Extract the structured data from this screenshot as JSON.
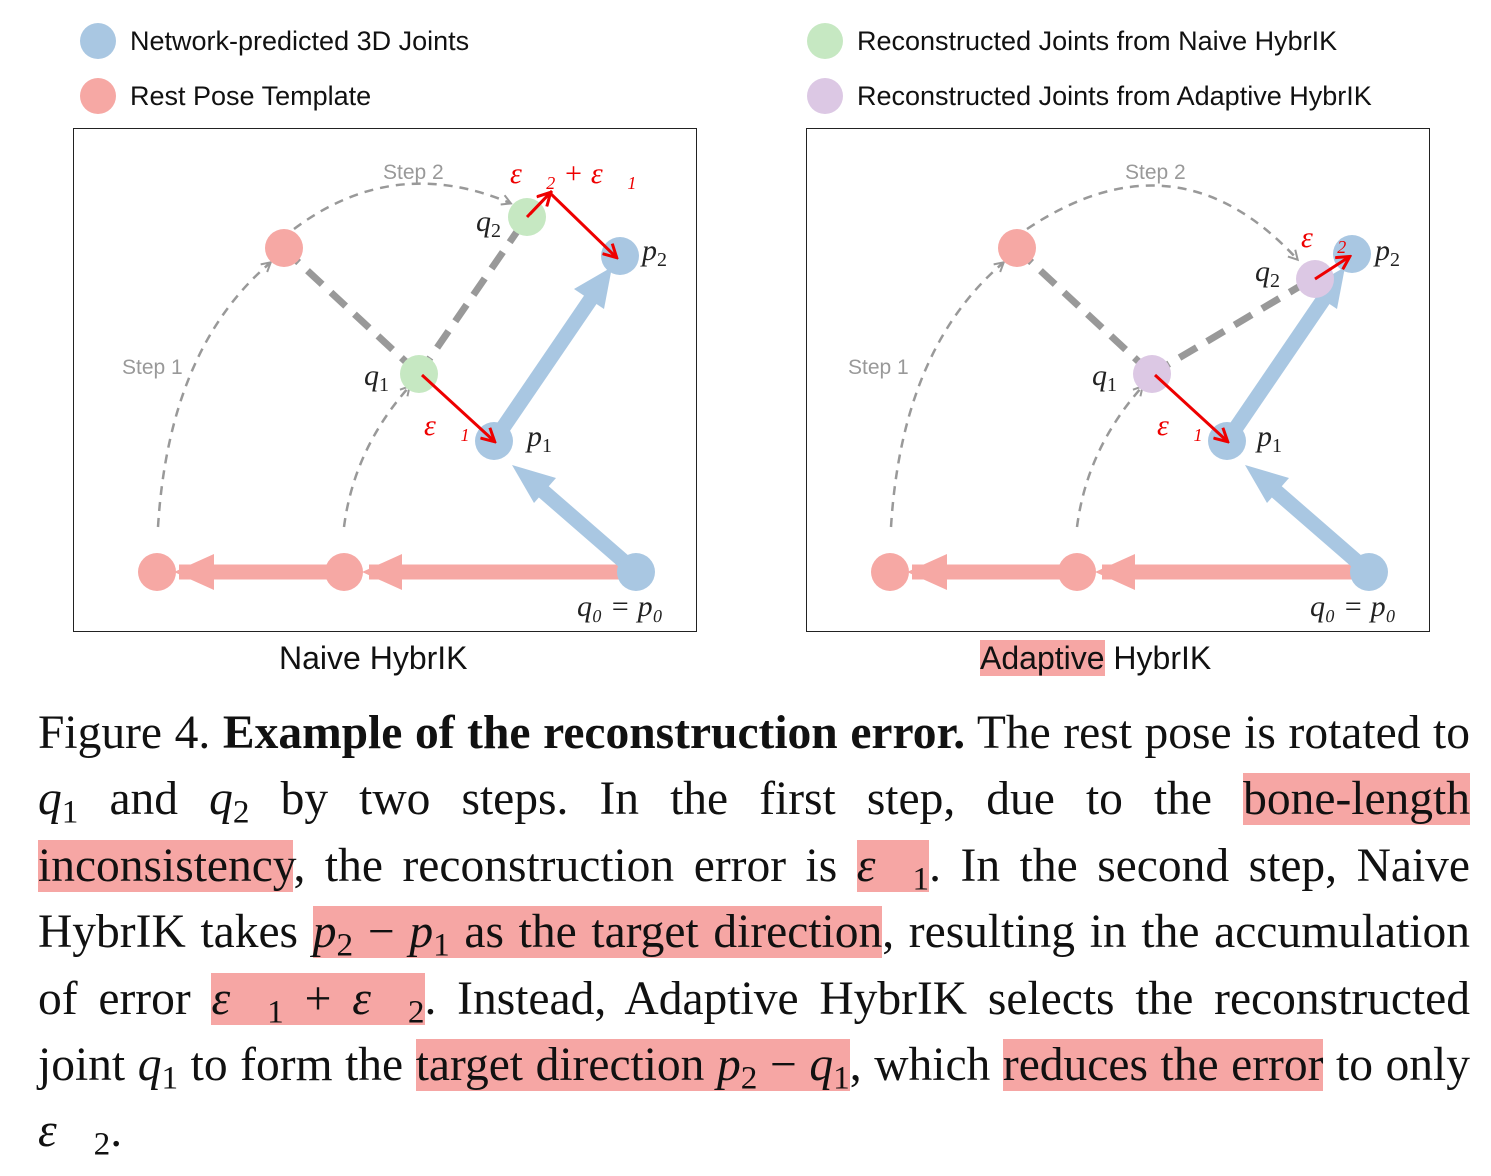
{
  "legend": [
    {
      "label": "Network-predicted 3D Joints",
      "color": "#a9c7e2"
    },
    {
      "label": "Rest Pose Template",
      "color": "#f6a8a4"
    },
    {
      "label": "Reconstructed Joints from Naive HybrIK",
      "color": "#c6e8c2"
    },
    {
      "label": "Reconstructed Joints from Adaptive HybrIK",
      "color": "#dcc8e4"
    }
  ],
  "panels": {
    "left": {
      "caption": "Naive HybrIK",
      "step1": "Step 1",
      "step2": "Step 2",
      "lbl_q1": "q",
      "sub_q1": "1",
      "lbl_q2": "q",
      "sub_q2": "2",
      "lbl_p1": "p",
      "sub_p1": "1",
      "lbl_p2": "p",
      "sub_p2": "2",
      "lbl_base": "q₀ = p₀",
      "err_small": "ε⃗₁",
      "err_top": "ε⃗₂ + ε⃗₁"
    },
    "right": {
      "caption_highlight": "Adaptive",
      "caption_rest": " HybrIK",
      "step1": "Step 1",
      "step2": "Step 2",
      "lbl_q1": "q",
      "sub_q1": "1",
      "lbl_q2": "q",
      "sub_q2": "2",
      "lbl_p1": "p",
      "sub_p1": "1",
      "lbl_p2": "p",
      "sub_p2": "2",
      "lbl_base": "q₀ = p₀",
      "err_small": "ε⃗₁",
      "err_top": "ε⃗₂"
    }
  },
  "colors": {
    "predicted": "#a9c7e2",
    "rest": "#f6a8a4",
    "naive": "#c6e8c2",
    "adaptive": "#dcc8e4",
    "error": "#ee0000",
    "highlight": "#f6a6a4"
  },
  "caption": {
    "figure_label": "Figure 4.",
    "title": "Example of the reconstruction error.",
    "t1": " The rest pose is rotated to ",
    "q": "q",
    "one": "1",
    "two": "2",
    "t2": " and ",
    "t3": " by two steps. In the first step, due to the ",
    "h1": "bone-length inconsistency",
    "t4": ", the reconstruction error is ",
    "eps1": "ε⃗",
    "t5": ". In the second step, Naive HybrIK takes ",
    "p": "p",
    "minus": " − ",
    "h3": " as the target direction",
    "t6": ", resulting in the accumulation of error ",
    "plus": " + ",
    "t7": ". Instead, Adaptive HybrIK selects the reconstructed joint ",
    "t8": " to form the ",
    "h5": "target direction ",
    "t9": ", which ",
    "h6": "reduces the error",
    "t10": " to only ",
    "t11": "."
  }
}
